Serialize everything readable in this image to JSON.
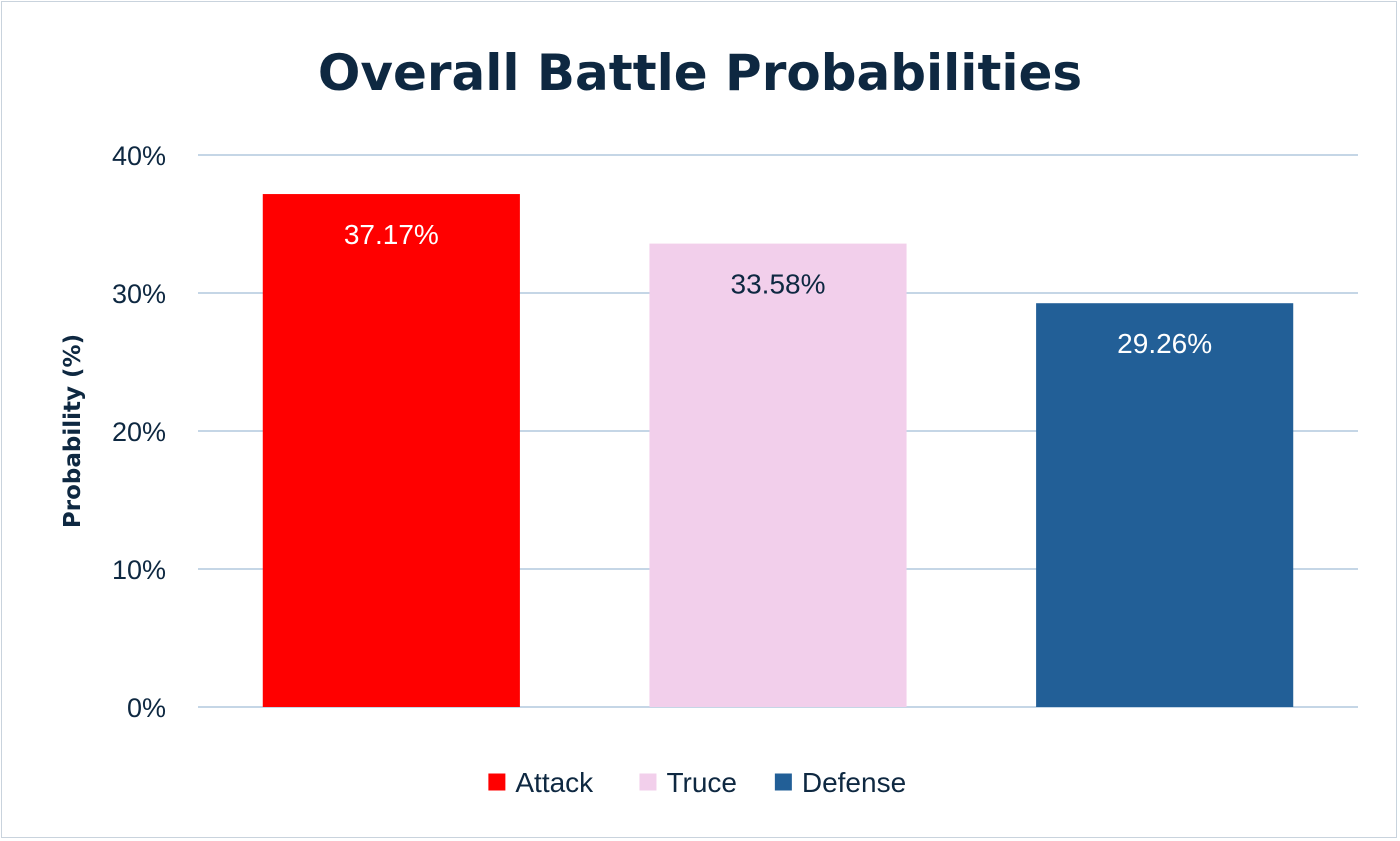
{
  "chart_data": {
    "type": "bar",
    "title": "Overall Battle Probabilities",
    "ylabel": "Probability (%)",
    "xlabel": "",
    "categories": [
      "Attack",
      "Truce",
      "Defense"
    ],
    "values": [
      37.17,
      33.58,
      29.26
    ],
    "data_labels": [
      "37.17%",
      "33.58%",
      "29.26%"
    ],
    "colors": [
      "#ff0000",
      "#f2cfeb",
      "#225f97"
    ],
    "label_colors": [
      "#ffffff",
      "#0e2841",
      "#ffffff"
    ],
    "ylim": [
      0,
      40
    ],
    "yticks": [
      0,
      10,
      20,
      30,
      40
    ],
    "ytick_labels": [
      "0%",
      "10%",
      "20%",
      "30%",
      "40%"
    ],
    "grid": true,
    "legend_position": "bottom",
    "legend": [
      "Attack",
      "Truce",
      "Defense"
    ]
  }
}
